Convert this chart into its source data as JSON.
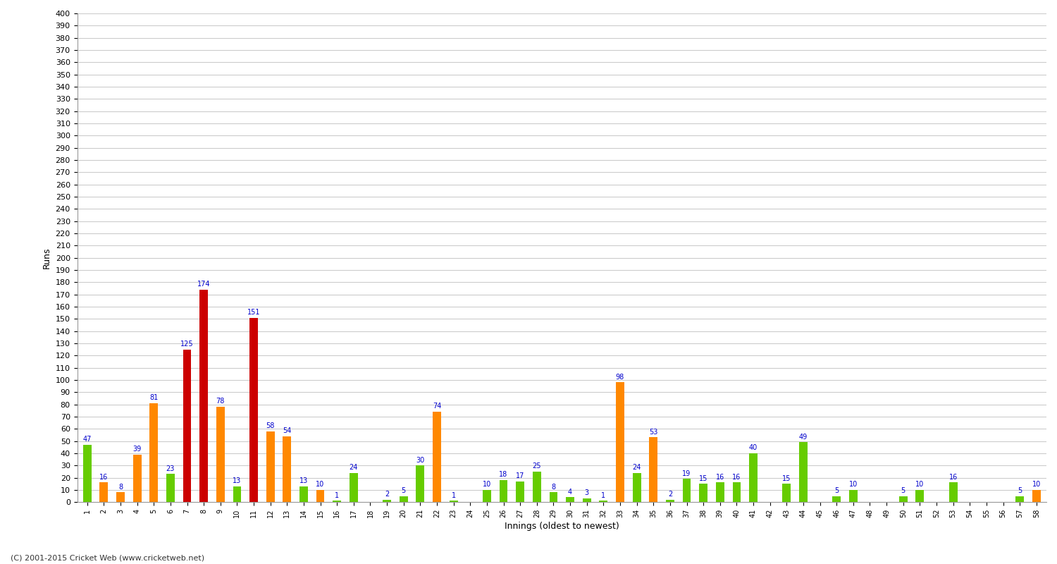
{
  "xlabel": "Innings (oldest to newest)",
  "ylabel": "Runs",
  "ylim": [
    0,
    400
  ],
  "yticks": [
    0,
    10,
    20,
    30,
    40,
    50,
    60,
    70,
    80,
    90,
    100,
    110,
    120,
    130,
    140,
    150,
    160,
    170,
    180,
    190,
    200,
    210,
    220,
    230,
    240,
    250,
    260,
    270,
    280,
    290,
    300,
    310,
    320,
    330,
    340,
    350,
    360,
    370,
    380,
    390,
    400
  ],
  "innings": [
    1,
    2,
    3,
    4,
    5,
    6,
    7,
    8,
    9,
    10,
    11,
    12,
    13,
    14,
    15,
    16,
    17,
    18,
    19,
    20,
    21,
    22,
    23,
    24,
    25,
    26,
    27,
    28,
    29,
    30,
    31,
    32,
    33,
    34,
    35,
    36,
    37,
    38,
    39,
    40,
    41,
    42,
    43,
    44,
    45,
    46,
    47,
    48,
    49,
    50,
    51,
    52,
    53,
    54,
    55,
    56,
    57,
    58
  ],
  "values": [
    47,
    16,
    8,
    39,
    81,
    23,
    125,
    174,
    78,
    13,
    151,
    58,
    54,
    13,
    10,
    1,
    24,
    0,
    2,
    5,
    30,
    74,
    1,
    0,
    10,
    18,
    17,
    25,
    8,
    4,
    3,
    1,
    98,
    24,
    53,
    2,
    19,
    15,
    16,
    16,
    40,
    0,
    15,
    49,
    0,
    5,
    10,
    0,
    0,
    5,
    10,
    0,
    16,
    0,
    0,
    0,
    5,
    10
  ],
  "colors": [
    "#66cc00",
    "#ff8800",
    "#ff8800",
    "#ff8800",
    "#ff8800",
    "#66cc00",
    "#cc0000",
    "#cc0000",
    "#ff8800",
    "#66cc00",
    "#cc0000",
    "#ff8800",
    "#ff8800",
    "#66cc00",
    "#ff8800",
    "#66cc00",
    "#66cc00",
    "#66cc00",
    "#66cc00",
    "#66cc00",
    "#66cc00",
    "#ff8800",
    "#66cc00",
    "#66cc00",
    "#66cc00",
    "#66cc00",
    "#66cc00",
    "#66cc00",
    "#66cc00",
    "#66cc00",
    "#66cc00",
    "#66cc00",
    "#ff8800",
    "#66cc00",
    "#ff8800",
    "#66cc00",
    "#66cc00",
    "#66cc00",
    "#66cc00",
    "#66cc00",
    "#66cc00",
    "#66cc00",
    "#66cc00",
    "#66cc00",
    "#66cc00",
    "#66cc00",
    "#66cc00",
    "#66cc00",
    "#66cc00",
    "#66cc00",
    "#66cc00",
    "#66cc00",
    "#66cc00",
    "#66cc00",
    "#66cc00",
    "#66cc00",
    "#66cc00",
    "#ff8800"
  ],
  "background_color": "#ffffff",
  "grid_color": "#cccccc",
  "label_color": "#0000cc",
  "label_fontsize": 7,
  "bar_width": 0.5,
  "figsize": [
    15,
    8
  ],
  "dpi": 100,
  "footer": "(C) 2001-2015 Cricket Web (www.cricketweb.net)"
}
